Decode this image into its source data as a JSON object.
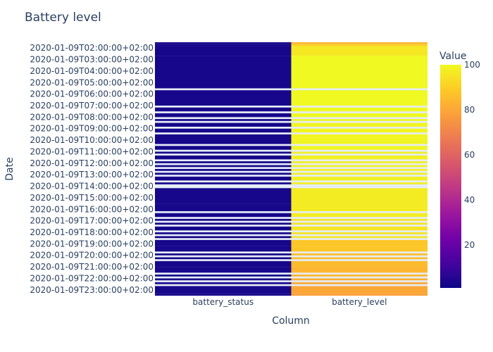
{
  "chart_data": {
    "type": "heatmap",
    "title": "Battery level",
    "xlabel": "Column",
    "ylabel": "Date",
    "columns": [
      "battery_status",
      "battery_level"
    ],
    "colorbar": {
      "title": "Value",
      "min": 1,
      "max": 100,
      "ticks": [
        "20",
        "40",
        "60",
        "80",
        "100"
      ]
    },
    "colorscale": [
      "#0d0887",
      "#46039f",
      "#7201a8",
      "#9c179e",
      "#bd3786",
      "#d8576b",
      "#ed7953",
      "#fb9f3a",
      "#fdca26",
      "#f0f921"
    ],
    "y_ticks": [
      "2020-01-09T02:00:00+02:00",
      "2020-01-09T03:00:00+02:00",
      "2020-01-09T04:00:00+02:00",
      "2020-01-09T05:00:00+02:00",
      "2020-01-09T06:00:00+02:00",
      "2020-01-09T07:00:00+02:00",
      "2020-01-09T08:00:00+02:00",
      "2020-01-09T09:00:00+02:00",
      "2020-01-09T10:00:00+02:00",
      "2020-01-09T11:00:00+02:00",
      "2020-01-09T12:00:00+02:00",
      "2020-01-09T13:00:00+02:00",
      "2020-01-09T14:00:00+02:00",
      "2020-01-09T15:00:00+02:00",
      "2020-01-09T16:00:00+02:00",
      "2020-01-09T17:00:00+02:00",
      "2020-01-09T18:00:00+02:00",
      "2020-01-09T19:00:00+02:00",
      "2020-01-09T20:00:00+02:00",
      "2020-01-09T21:00:00+02:00",
      "2020-01-09T22:00:00+02:00",
      "2020-01-09T23:00:00+02:00"
    ],
    "time_range": [
      "2020-01-09T01:30",
      "2020-01-09T23:30"
    ],
    "rows": [
      {
        "start": "01:30",
        "end": "01:40",
        "battery_status": 3,
        "battery_level": 84
      },
      {
        "start": "01:40",
        "end": "01:50",
        "battery_status": 3,
        "battery_level": 90
      },
      {
        "start": "01:50",
        "end": "02:40",
        "battery_status": 3,
        "battery_level": 96
      },
      {
        "start": "02:40",
        "end": "05:30",
        "battery_status": 3,
        "battery_level": 100
      },
      {
        "start": "05:40",
        "end": "07:00",
        "battery_status": 3,
        "battery_level": 100
      },
      {
        "start": "07:10",
        "end": "07:30",
        "battery_status": 3,
        "battery_level": 100
      },
      {
        "start": "07:40",
        "end": "08:00",
        "battery_status": 3,
        "battery_level": 100
      },
      {
        "start": "08:10",
        "end": "08:20",
        "battery_status": 3,
        "battery_level": 99
      },
      {
        "start": "08:30",
        "end": "08:50",
        "battery_status": 3,
        "battery_level": 99
      },
      {
        "start": "09:00",
        "end": "09:20",
        "battery_status": 3,
        "battery_level": 99
      },
      {
        "start": "09:30",
        "end": "10:20",
        "battery_status": 3,
        "battery_level": 99
      },
      {
        "start": "10:30",
        "end": "10:50",
        "battery_status": 3,
        "battery_level": 99
      },
      {
        "start": "11:00",
        "end": "11:10",
        "battery_status": 3,
        "battery_level": 98
      },
      {
        "start": "11:20",
        "end": "11:40",
        "battery_status": 3,
        "battery_level": 98
      },
      {
        "start": "11:50",
        "end": "12:00",
        "battery_status": 3,
        "battery_level": 98
      },
      {
        "start": "12:10",
        "end": "12:20",
        "battery_status": 3,
        "battery_level": 98
      },
      {
        "start": "12:30",
        "end": "12:40",
        "battery_status": 3,
        "battery_level": 98
      },
      {
        "start": "12:50",
        "end": "13:00",
        "battery_status": 3,
        "battery_level": 98
      },
      {
        "start": "13:10",
        "end": "13:30",
        "battery_status": 3,
        "battery_level": 98
      },
      {
        "start": "13:40",
        "end": "13:50",
        "battery_status": 3,
        "battery_level": 98
      },
      {
        "start": "14:10",
        "end": "14:20",
        "battery_status": 3,
        "battery_level": 97
      },
      {
        "start": "14:20",
        "end": "15:30",
        "battery_status": 3,
        "battery_level": 97
      },
      {
        "start": "15:30",
        "end": "16:10",
        "battery_status": 3,
        "battery_level": 97
      },
      {
        "start": "16:20",
        "end": "16:40",
        "battery_status": 3,
        "battery_level": 97
      },
      {
        "start": "16:50",
        "end": "17:00",
        "battery_status": 3,
        "battery_level": 95
      },
      {
        "start": "17:10",
        "end": "17:20",
        "battery_status": 3,
        "battery_level": 95
      },
      {
        "start": "17:30",
        "end": "17:50",
        "battery_status": 3,
        "battery_level": 95
      },
      {
        "start": "18:00",
        "end": "18:10",
        "battery_status": 3,
        "battery_level": 95
      },
      {
        "start": "18:20",
        "end": "18:30",
        "battery_status": 3,
        "battery_level": 95
      },
      {
        "start": "18:40",
        "end": "19:10",
        "battery_status": 3,
        "battery_level": 88
      },
      {
        "start": "19:10",
        "end": "19:40",
        "battery_status": 3,
        "battery_level": 88
      },
      {
        "start": "19:50",
        "end": "20:00",
        "battery_status": 3,
        "battery_level": 86
      },
      {
        "start": "20:10",
        "end": "20:20",
        "battery_status": 3,
        "battery_level": 86
      },
      {
        "start": "20:30",
        "end": "21:00",
        "battery_status": 3,
        "battery_level": 85
      },
      {
        "start": "21:00",
        "end": "21:30",
        "battery_status": 3,
        "battery_level": 84
      },
      {
        "start": "21:40",
        "end": "21:50",
        "battery_status": 3,
        "battery_level": 84
      },
      {
        "start": "22:00",
        "end": "22:10",
        "battery_status": 3,
        "battery_level": 82
      },
      {
        "start": "22:20",
        "end": "22:30",
        "battery_status": 3,
        "battery_level": 80
      },
      {
        "start": "22:40",
        "end": "23:20",
        "battery_status": 3,
        "battery_level": 80
      },
      {
        "start": "23:20",
        "end": "23:30",
        "battery_status": 3,
        "battery_level": 78
      }
    ]
  }
}
